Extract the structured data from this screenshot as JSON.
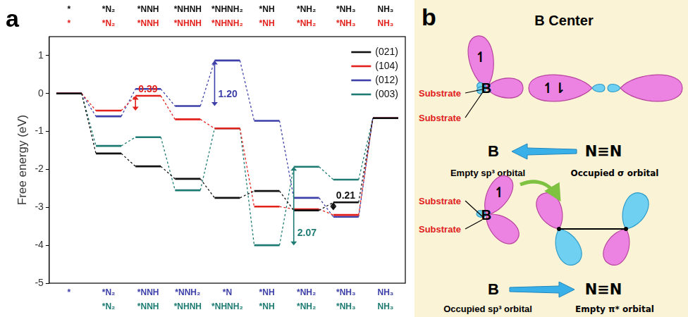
{
  "chart_data": {
    "type": "step",
    "panel_label": "a",
    "y_label": "Free energy (eV)",
    "ylim": [
      -5,
      1.5
    ],
    "yticks": [
      -5,
      -4,
      -3,
      -2,
      -1,
      0,
      1
    ],
    "grid": false,
    "legend": "upper right",
    "series": [
      {
        "name": "(021)",
        "color": "#111111",
        "categories": [
          "*",
          "*N₂",
          "*NNH",
          "*NHNH",
          "*NHNH₂",
          "*NH",
          "*NH₂",
          "*NH₃",
          "NH₃"
        ],
        "values": [
          0,
          -1.58,
          -1.92,
          -2.25,
          -2.75,
          -2.57,
          -3.08,
          -2.87,
          -0.65
        ]
      },
      {
        "name": "(104)",
        "color": "#e3211c",
        "categories": [
          "*",
          "*N₂",
          "*NNH",
          "*NHNH",
          "*NHNH₂",
          "*NH",
          "*NH₂",
          "*NH₃",
          "NH₃"
        ],
        "values": [
          0,
          -0.45,
          -0.06,
          -0.68,
          -0.92,
          -2.98,
          -3.05,
          -3.2,
          -0.65
        ]
      },
      {
        "name": "(012)",
        "color": "#3d40a8",
        "categories": [
          "*",
          "*N₂",
          "*NNH",
          "*NNH₂",
          "*N",
          "*NH",
          "*NH₂",
          "*NH₃",
          "NH₃"
        ],
        "values": [
          0,
          -0.6,
          0.12,
          -0.33,
          0.87,
          -0.72,
          -2.75,
          -3.25,
          -0.65
        ]
      },
      {
        "name": "(003)",
        "color": "#1d7b73",
        "categories": [
          null,
          "*N₂",
          "*NNH",
          "*NHNH",
          "*NHNH₂",
          "*NH",
          "*NH₂",
          "*NH₃",
          "NH₃"
        ],
        "values": [
          0,
          -1.38,
          -1.15,
          -2.55,
          -0.92,
          -4.0,
          -1.93,
          -2.27,
          -0.65
        ]
      }
    ],
    "annotations": [
      {
        "text": "0.39",
        "color": "#e3211c",
        "x": 2,
        "from": -0.45,
        "to": -0.06
      },
      {
        "text": "1.20",
        "color": "#3d40a8",
        "x": 4,
        "from": -0.33,
        "to": 0.87
      },
      {
        "text": "0.21",
        "color": "#111111",
        "x": 7,
        "from": -3.08,
        "to": -2.87
      },
      {
        "text": "2.07",
        "color": "#1d7b73",
        "x": 6,
        "from": -4.0,
        "to": -1.93
      }
    ]
  },
  "diagram": {
    "label": "b",
    "title": "B Center",
    "rows": [
      {
        "center": "B",
        "substrates": [
          "Substrate",
          "Substrate"
        ],
        "electrons": [
          "↿",
          "↿⇂"
        ],
        "left": {
          "symbol": "B",
          "orbital": "Empty sp³ orbital"
        },
        "right": {
          "symbol": "N≡N",
          "orbital": "Occupied σ orbital"
        },
        "arrow": "left"
      },
      {
        "center": "B",
        "substrates": [
          "Substrate",
          "Substrate"
        ],
        "electrons": [
          "↿"
        ],
        "left": {
          "symbol": "B",
          "orbital": "Occupied sp³ orbital"
        },
        "right": {
          "symbol": "N≡N",
          "orbital": "Empty π* orbital"
        },
        "arrow": "right"
      }
    ]
  }
}
